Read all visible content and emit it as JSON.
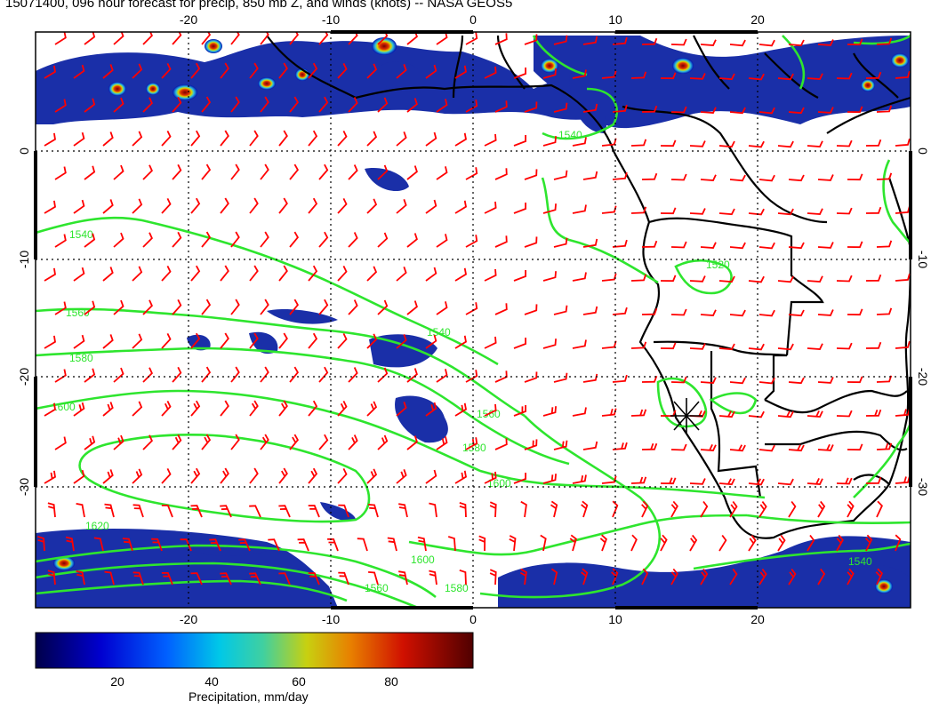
{
  "title": "15071400, 096 hour forecast for precip, 850 mb Z, and winds (knots) -- NASA GEOS5",
  "map": {
    "lon_ticks": [
      "-20",
      "-10",
      "0",
      "10",
      "20"
    ],
    "lat_ticks": [
      "0",
      "-10",
      "-20",
      "-30"
    ],
    "contour_labels": [
      "1540",
      "1560",
      "1580",
      "1600",
      "1620",
      "1520"
    ],
    "colors": {
      "contour": "#2ee52e",
      "wind_barb": "#ff0000",
      "coastline": "#000000",
      "grid": "#000000"
    }
  },
  "colorbar": {
    "ticks": [
      "20",
      "40",
      "60",
      "80"
    ],
    "label": "Precipitation, mm/day",
    "colors": [
      "#00007a",
      "#0000ff",
      "#00c8ff",
      "#44d8b0",
      "#d8d800",
      "#e86000",
      "#c00000",
      "#600000"
    ]
  }
}
